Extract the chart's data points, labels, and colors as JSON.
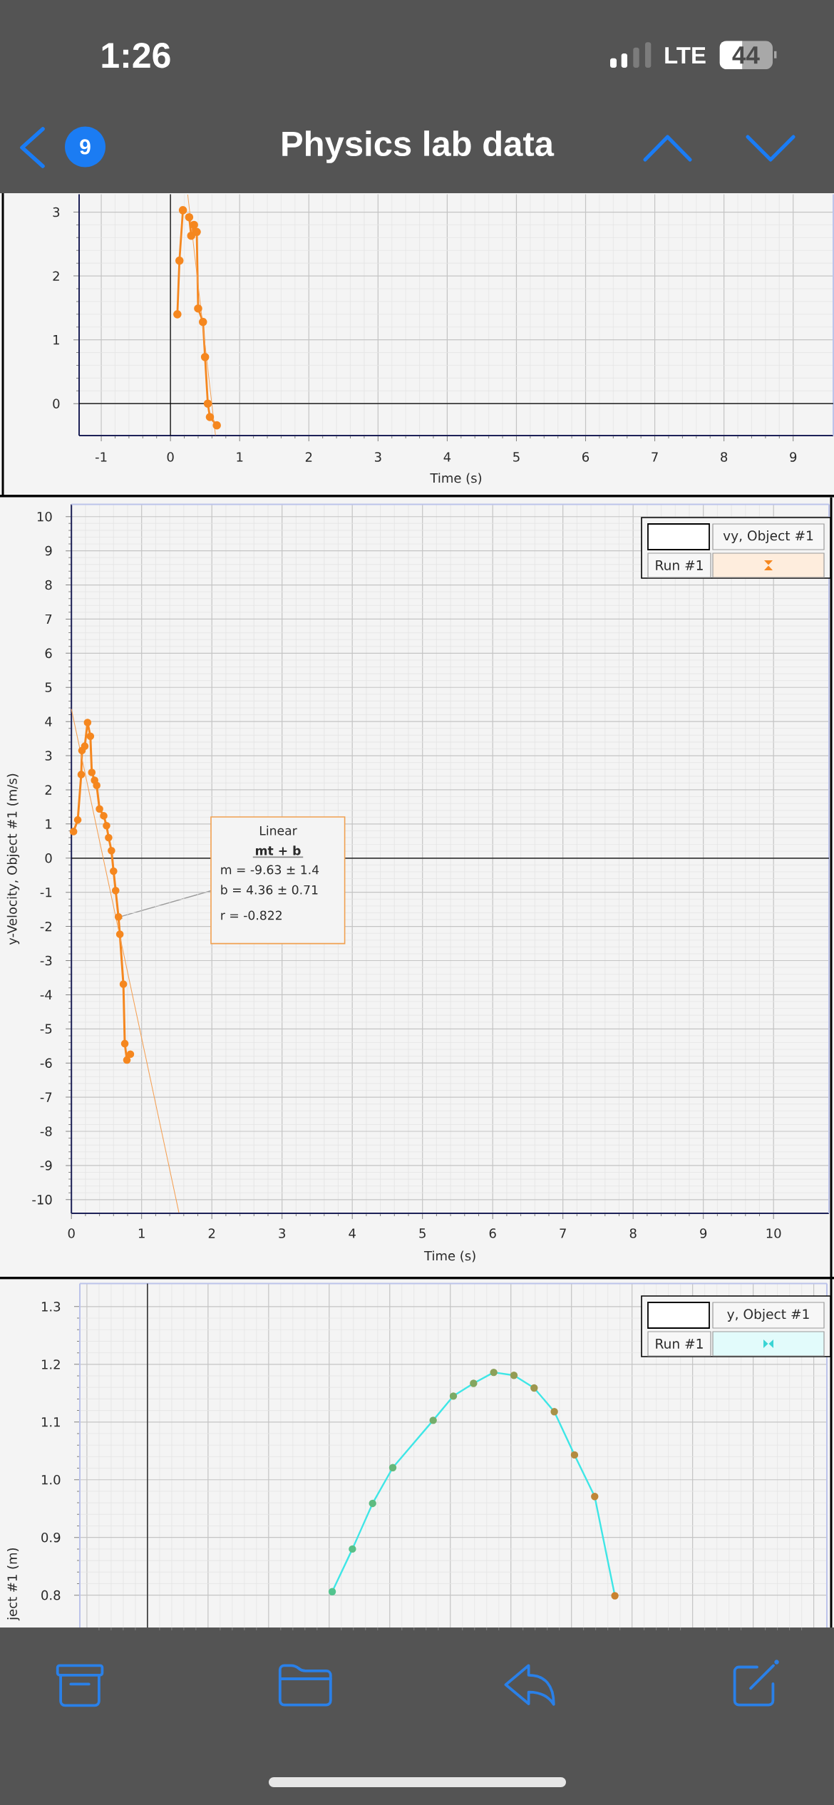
{
  "chart_data": [
    {
      "type": "other",
      "title": "Physics lab data",
      "annotations": [
        "1:26",
        "LTE",
        "44",
        "9"
      ]
    },
    {
      "type": "line",
      "xlabel": "Time (s)",
      "xlim": [
        -1.32,
        9.58
      ],
      "ylim": [
        -0.5,
        3.28
      ],
      "xticks": [
        -1,
        0,
        1,
        2,
        3,
        4,
        5,
        6,
        7,
        8,
        9
      ],
      "yticks": [
        0,
        1,
        2,
        3
      ],
      "grid": true,
      "marker": "circle",
      "series": [
        {
          "color": "#f5871f",
          "x": [
            0.1,
            0.13,
            0.18,
            0.22,
            0.27,
            0.3,
            0.34,
            0.38,
            0.4,
            0.47,
            0.5,
            0.54,
            0.57,
            0.67
          ],
          "values": [
            1.4,
            2.24,
            3.03,
            null,
            2.92,
            2.63,
            2.8,
            2.69,
            1.49,
            1.28,
            0.73,
            0.0,
            -0.21,
            -0.34
          ]
        },
        {
          "color": "#f4a054",
          "marker": "none",
          "x": [
            0.25,
            0.65
          ],
          "values": [
            3.27,
            -0.49
          ]
        }
      ]
    },
    {
      "type": "line",
      "xlabel": "Time (s)",
      "ylabel": "y-Velocity, Object #1 (m/s)",
      "legend_title": "vy, Object #1",
      "legend": "top right",
      "xlim": [
        0,
        10.79
      ],
      "ylim": [
        -10.4,
        10.36
      ],
      "xticks": [
        0,
        1,
        2,
        3,
        4,
        5,
        6,
        7,
        8,
        9,
        10
      ],
      "yticks": [
        -10,
        -9,
        -8,
        -7,
        -6,
        -5,
        -4,
        -3,
        -2,
        -1,
        0,
        1,
        2,
        3,
        4,
        5,
        6,
        7,
        8,
        9,
        10
      ],
      "grid": true,
      "marker": "circle",
      "series": [
        {
          "name": "Run #1",
          "color": "#f5871f",
          "x": [
            0.03,
            0.09,
            0.14,
            0.15,
            0.19,
            0.23,
            0.27,
            0.29,
            0.33,
            0.36,
            0.4,
            0.46,
            0.5,
            0.53,
            0.57,
            0.6,
            0.63,
            0.67,
            0.69,
            0.74,
            0.76,
            0.79,
            0.84
          ],
          "values": [
            0.78,
            1.12,
            2.45,
            3.15,
            3.28,
            3.97,
            3.57,
            2.51,
            2.28,
            2.13,
            1.44,
            1.24,
            0.95,
            0.6,
            0.22,
            -0.38,
            -0.95,
            -1.72,
            -2.23,
            -3.69,
            -5.43,
            -5.91,
            -5.74
          ]
        },
        {
          "color": "#f4a054",
          "marker": "none",
          "x": [
            0,
            1.53
          ],
          "values": [
            4.36,
            -10.37
          ]
        }
      ],
      "annotations": [
        "Linear",
        "mt + b",
        "m = -9.63 ± 1.4",
        {
          "text": "b = 4.36 ± 0.71",
          "x": 0.62,
          "y": -1.76
        },
        "r = -0.822"
      ]
    },
    {
      "type": "line",
      "ylabel": "ject #1 (m)",
      "legend_title": "y, Object #1",
      "legend": "top right",
      "tick_labels": "y",
      "categories": [
        null,
        null,
        null,
        null,
        null,
        null,
        null,
        null,
        null,
        null,
        null,
        null,
        null,
        null,
        null,
        null,
        null,
        null,
        null,
        null,
        null,
        null,
        null,
        null,
        null,
        null,
        null,
        null,
        null,
        null,
        null,
        null,
        null,
        null,
        null,
        null,
        null
      ],
      "ylim": [
        0.744,
        1.34
      ],
      "yticks": [
        0.8,
        0.9,
        {
          "value": 1.0,
          "label": "1.0"
        },
        1.1,
        1.2,
        1.3
      ],
      "grid": true,
      "marker": "circle",
      "series": [
        {
          "name": "Run #1",
          "color": "#3fe6e6",
          "colors": [
            null,
            null,
            null,
            null,
            null,
            null,
            null,
            null,
            null,
            null,
            null,
            null,
            "#52c48e",
            "#58c088",
            "#5fbb80",
            "#66b779",
            "#6eb272",
            "#75ae6b",
            "#7caa66",
            "#84a660",
            "#8ca15a",
            "#949c54",
            "#9d974e",
            "#a89148",
            "#b38b40",
            "#bf8638",
            "#c98230",
            null,
            null,
            null,
            null,
            null,
            null,
            null,
            null,
            null,
            null
          ],
          "values": [
            null,
            null,
            null,
            null,
            null,
            null,
            null,
            null,
            null,
            null,
            null,
            null,
            0.806,
            0.88,
            0.959,
            1.021,
            null,
            1.103,
            1.145,
            1.167,
            1.186,
            1.181,
            1.159,
            1.118,
            1.043,
            0.971,
            0.799,
            null,
            null,
            null,
            null,
            null,
            null,
            null,
            null,
            null,
            null
          ]
        }
      ]
    }
  ]
}
